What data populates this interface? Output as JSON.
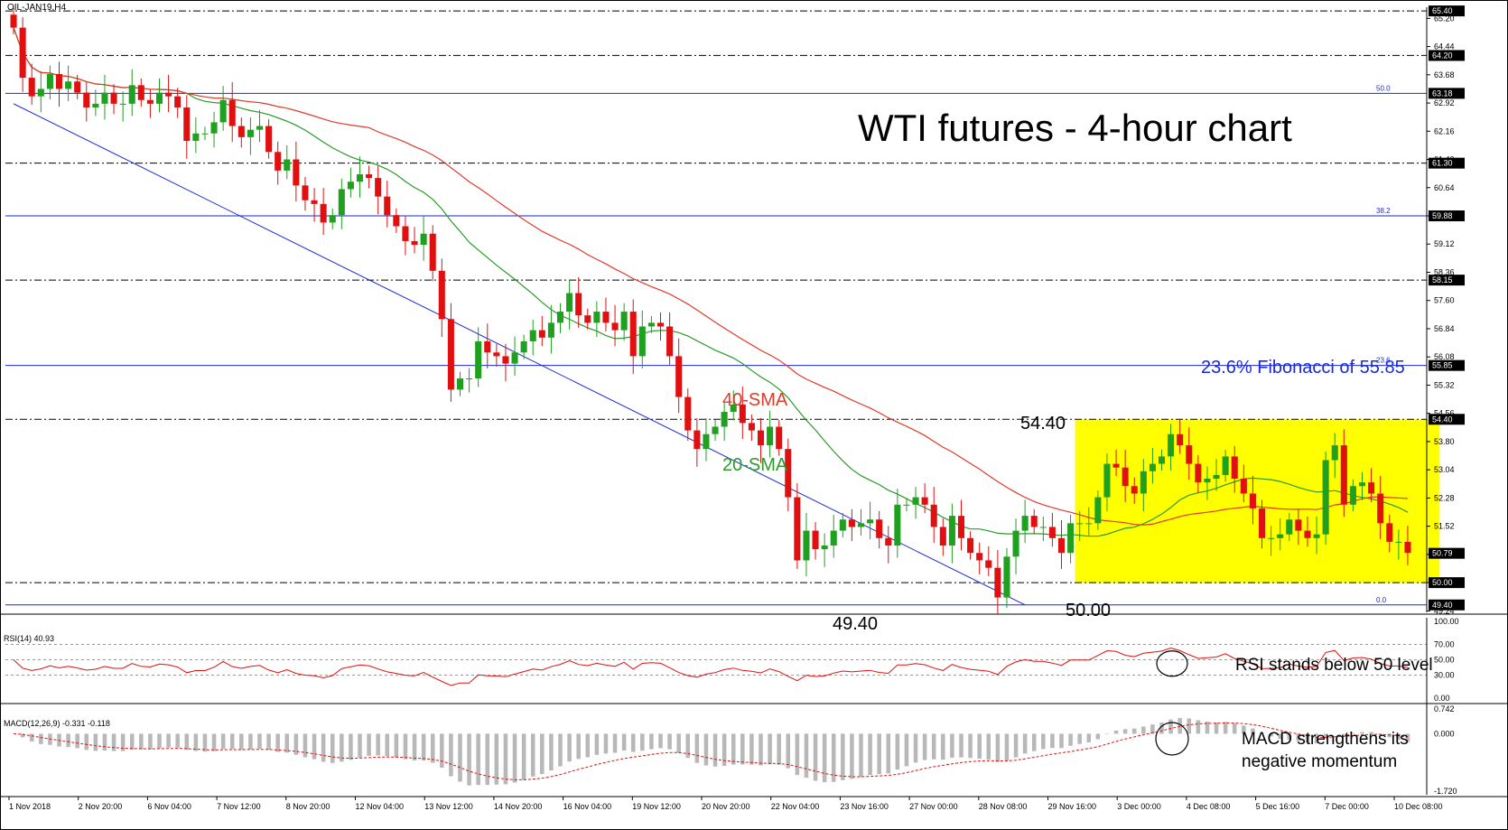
{
  "symbol_label": "OIL-JAN19,H4",
  "title": "WTI futures - 4-hour chart",
  "annotations": {
    "fib_note": "23.6% Fibonacci of 55.85",
    "sma40": "40-SMA",
    "sma20": "20-SMA",
    "high_label": "54.40",
    "support_label": "50.00",
    "low_label": "49.40",
    "rsi_note": "RSI stands below 50 level",
    "macd_note_line1": "MACD strengthens its",
    "macd_note_line2": "negative momentum"
  },
  "colors": {
    "bull": "#1fa01f",
    "bear": "#e01010",
    "sma20": "#2a9a2a",
    "sma40": "#e03a2a",
    "fib": "#1a2ad6",
    "range_box": "#ffff00",
    "rsi": "#e01010",
    "macd_signal": "#e01010",
    "macd_hist": "#b8b8b8"
  },
  "chart_data": {
    "type": "candlestick",
    "ylim": [
      49.2,
      65.5
    ],
    "price_axis_ticks": [
      65.2,
      64.44,
      63.68,
      62.92,
      62.16,
      61.4,
      60.64,
      59.88,
      59.12,
      58.36,
      57.6,
      56.84,
      56.08,
      55.32,
      54.56,
      53.8,
      53.04,
      52.28,
      51.52,
      50.76,
      50.0,
      49.24
    ],
    "price_tags": [
      65.4,
      64.2,
      63.18,
      61.3,
      59.88,
      58.15,
      55.85,
      54.4,
      50.79,
      50.0,
      49.4
    ],
    "horizontal_levels": [
      {
        "price": 65.4,
        "style": "dash-dot"
      },
      {
        "price": 64.2,
        "style": "dash-dot"
      },
      {
        "price": 63.18,
        "style": "fib",
        "tag": "50.0"
      },
      {
        "price": 61.3,
        "style": "dash-dot"
      },
      {
        "price": 59.88,
        "style": "fib",
        "tag": "38.2"
      },
      {
        "price": 58.15,
        "style": "dash-dot"
      },
      {
        "price": 55.85,
        "style": "fib",
        "tag": "23.6"
      },
      {
        "price": 54.4,
        "style": "dash-dot"
      },
      {
        "price": 50.0,
        "style": "dash-dot"
      },
      {
        "price": 49.4,
        "style": "fib",
        "tag": "0.0"
      }
    ],
    "trendline": {
      "from": {
        "bar": 0,
        "price": 62.9
      },
      "to": {
        "bar": 111,
        "price": 49.4
      }
    },
    "range_box": {
      "from_bar": 117,
      "to_bar": 156,
      "low": 50.0,
      "high": 54.4
    },
    "x_tick_labels": [
      "1 Nov 2018",
      "2 Nov 20:00",
      "6 Nov 04:00",
      "7 Nov 12:00",
      "8 Nov 20:00",
      "12 Nov 04:00",
      "13 Nov 12:00",
      "14 Nov 20:00",
      "16 Nov 04:00",
      "19 Nov 12:00",
      "20 Nov 20:00",
      "22 Nov 04:00",
      "23 Nov 16:00",
      "27 Nov 00:00",
      "28 Nov 08:00",
      "29 Nov 16:00",
      "3 Dec 00:00",
      "4 Dec 08:00",
      "5 Dec 16:00",
      "7 Dec 00:00",
      "10 Dec 08:00"
    ],
    "closes": [
      64.95,
      63.6,
      63.1,
      63.3,
      63.7,
      63.3,
      63.5,
      63.2,
      62.8,
      62.9,
      63.2,
      62.9,
      62.9,
      63.4,
      63.0,
      62.9,
      63.2,
      63.1,
      62.8,
      61.9,
      62.1,
      62.1,
      62.4,
      63.0,
      62.3,
      62.0,
      62.2,
      62.3,
      61.6,
      61.1,
      61.4,
      60.7,
      60.3,
      60.2,
      59.7,
      59.9,
      60.6,
      60.8,
      61.0,
      60.9,
      60.4,
      59.9,
      59.6,
      59.2,
      59.1,
      59.4,
      58.4,
      57.1,
      55.2,
      55.5,
      55.5,
      56.5,
      56.2,
      56.1,
      55.9,
      56.2,
      56.5,
      56.8,
      56.6,
      57.0,
      57.3,
      57.8,
      57.2,
      57.0,
      57.3,
      57.0,
      56.8,
      57.3,
      56.1,
      56.9,
      57.0,
      56.9,
      56.1,
      55.0,
      54.1,
      53.6,
      54.0,
      54.2,
      54.6,
      54.8,
      54.3,
      54.1,
      53.7,
      54.2,
      53.6,
      52.3,
      50.6,
      51.4,
      50.9,
      51.0,
      51.4,
      51.7,
      51.5,
      51.6,
      51.7,
      51.2,
      51.0,
      52.1,
      52.1,
      52.3,
      52.1,
      51.5,
      51.0,
      51.8,
      51.2,
      50.8,
      50.6,
      50.4,
      49.6,
      50.7,
      51.4,
      51.8,
      51.5,
      51.5,
      51.2,
      50.8,
      51.6,
      51.6,
      51.6,
      52.3,
      53.2,
      53.1,
      52.6,
      52.4,
      53.0,
      53.2,
      53.4,
      54.0,
      53.7,
      53.2,
      52.7,
      52.8,
      52.9,
      53.4,
      52.8,
      52.4,
      52.0,
      51.2,
      51.2,
      51.3,
      51.7,
      51.4,
      51.2,
      51.3,
      53.3,
      53.7,
      52.1,
      52.6,
      52.7,
      52.4,
      51.6,
      51.1,
      51.1,
      50.8
    ],
    "rsi": {
      "label": "RSI(14) 40.93",
      "levels": [
        100,
        70,
        50,
        30,
        0
      ],
      "tick_labels": [
        "100.00",
        "70.00",
        "50.00",
        "30.00",
        "0.00"
      ],
      "last": 40.93
    },
    "macd": {
      "label": "MACD(12,26,9) -0.331 -0.118",
      "tick_labels": [
        "0.742",
        "0.000",
        "-1.720"
      ],
      "ylim": [
        -1.72,
        0.742
      ],
      "macd_last": -0.331,
      "signal_last": -0.118
    }
  }
}
